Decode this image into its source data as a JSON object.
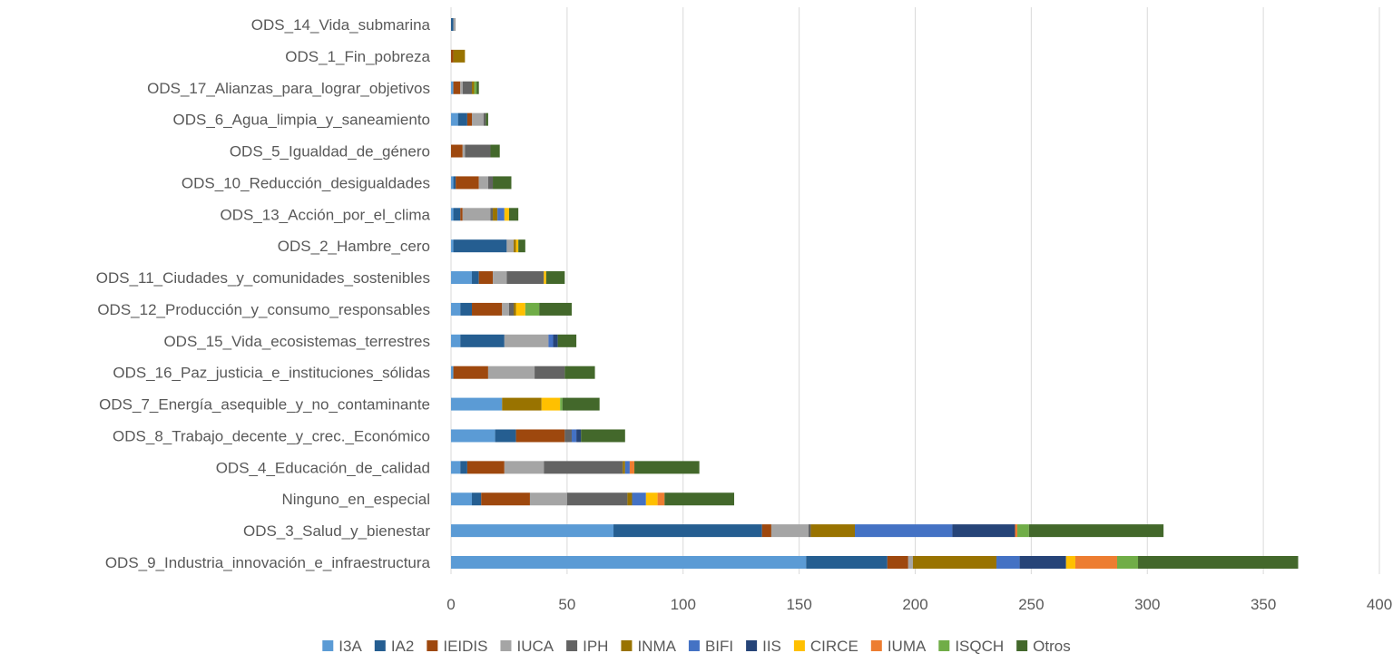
{
  "chart_data": {
    "type": "bar",
    "orientation": "horizontal",
    "stacked": true,
    "title": "",
    "xlabel": "",
    "ylabel": "",
    "xlim": [
      0,
      400
    ],
    "xticks": [
      "0",
      "50",
      "100",
      "150",
      "200",
      "250",
      "300",
      "350",
      "400"
    ],
    "grid": true,
    "legend_position": "bottom",
    "categories": [
      "ODS_14_Vida_submarina",
      "ODS_1_Fin_pobreza",
      "ODS_17_Alianzas_para_lograr_objetivos",
      "ODS_6_Agua_limpia_y_saneamiento",
      "ODS_5_Igualdad_de_género",
      "ODS_10_Reducción_desigualdades",
      "ODS_13_Acción_por_el_clima",
      "ODS_2_Hambre_cero",
      "ODS_11_Ciudades_y_comunidades_sostenibles",
      "ODS_12_Producción_y_consumo_responsables",
      "ODS_15_Vida_ecosistemas_terrestres",
      "ODS_16_Paz_justicia_e_instituciones_sólidas",
      "ODS_7_Energía_asequible_y_no_contaminante",
      "ODS_8_Trabajo_decente_y_crec._Económico",
      "ODS_4_Educación_de_calidad",
      "Ninguno_en_especial",
      "ODS_3_Salud_y_bienestar",
      "ODS_9_Industria_innovación_e_infraestructura"
    ],
    "series": [
      {
        "name": "I3A",
        "color": "#5B9BD5",
        "values": [
          0,
          0,
          1,
          3,
          0,
          1,
          1,
          1,
          9,
          4,
          4,
          1,
          22,
          19,
          4,
          9,
          70,
          153
        ]
      },
      {
        "name": "IA2",
        "color": "#255E91",
        "values": [
          1,
          0,
          0,
          4,
          0,
          1,
          3,
          23,
          3,
          5,
          19,
          0,
          0,
          9,
          3,
          4,
          64,
          35
        ]
      },
      {
        "name": "IEIDIS",
        "color": "#9E480E",
        "values": [
          0,
          1,
          3,
          2,
          5,
          10,
          1,
          0,
          6,
          13,
          0,
          15,
          0,
          21,
          16,
          21,
          4,
          9
        ]
      },
      {
        "name": "IUCA",
        "color": "#A5A5A5",
        "values": [
          1,
          0,
          1,
          5,
          1,
          4,
          12,
          3,
          6,
          3,
          19,
          20,
          0,
          0,
          17,
          16,
          16,
          2
        ]
      },
      {
        "name": "IPH",
        "color": "#636363",
        "values": [
          0,
          0,
          4,
          1,
          11,
          2,
          1,
          0,
          16,
          2,
          0,
          13,
          0,
          3,
          34,
          26,
          1,
          0
        ]
      },
      {
        "name": "INMA",
        "color": "#997300",
        "values": [
          0,
          5,
          1,
          0,
          0,
          0,
          2,
          1,
          0,
          1,
          0,
          0,
          17,
          0,
          1,
          2,
          19,
          36
        ]
      },
      {
        "name": "BIFI",
        "color": "#4472C4",
        "values": [
          0,
          0,
          0,
          0,
          0,
          0,
          3,
          0,
          0,
          0,
          2,
          0,
          0,
          2,
          2,
          6,
          42,
          10
        ]
      },
      {
        "name": "IIS",
        "color": "#264478",
        "values": [
          0,
          0,
          0,
          0,
          0,
          0,
          0,
          0,
          0,
          0,
          2,
          0,
          0,
          2,
          0,
          0,
          27,
          20
        ]
      },
      {
        "name": "CIRCE",
        "color": "#FFC000",
        "values": [
          0,
          0,
          0,
          0,
          0,
          0,
          2,
          1,
          1,
          4,
          0,
          0,
          8,
          0,
          0,
          5,
          0,
          4
        ]
      },
      {
        "name": "IUMA",
        "color": "#ED7D31",
        "values": [
          0,
          0,
          0,
          0,
          0,
          0,
          0,
          0,
          0,
          0,
          0,
          0,
          0,
          0,
          2,
          3,
          1,
          18
        ]
      },
      {
        "name": "ISQCH",
        "color": "#70AD47",
        "values": [
          0,
          0,
          1,
          0,
          0,
          0,
          0,
          0,
          0,
          6,
          0,
          0,
          1,
          0,
          0,
          0,
          5,
          9
        ]
      },
      {
        "name": "Otros",
        "color": "#43682B",
        "values": [
          0,
          0,
          1,
          1,
          4,
          8,
          4,
          3,
          8,
          14,
          8,
          13,
          16,
          19,
          28,
          30,
          58,
          69
        ]
      }
    ]
  }
}
